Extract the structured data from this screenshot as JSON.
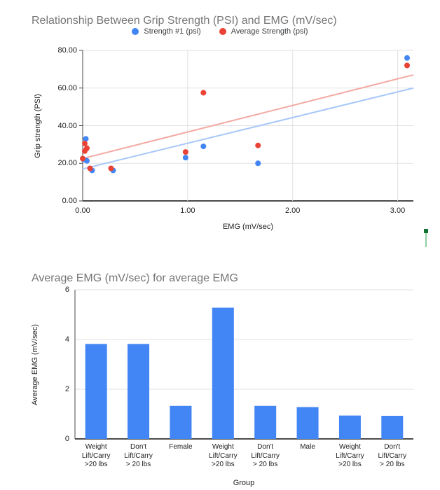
{
  "colors": {
    "title": "#757575",
    "text": "#202124",
    "grid": "#e2e2e2",
    "axis": "#4a4a4a",
    "selection_handle": "#34a853",
    "selection_handle_cap": "#137333"
  },
  "chart_data": [
    {
      "type": "scatter",
      "title": "Relationship Between Grip Strength (PSI) and EMG (mV/sec)",
      "xlabel": "EMG (mV/sec)",
      "ylabel": "Grip strength (PSI)",
      "xlim": [
        0,
        3.15
      ],
      "ylim": [
        0,
        80
      ],
      "grid": true,
      "legend_position": "top",
      "x_ticks": [
        {
          "v": 0,
          "label": "0.00"
        },
        {
          "v": 1,
          "label": "1.00"
        },
        {
          "v": 2,
          "label": "2.00"
        },
        {
          "v": 3,
          "label": "3.00"
        }
      ],
      "y_ticks": [
        {
          "v": 0,
          "label": "0.00"
        },
        {
          "v": 20,
          "label": "20.00"
        },
        {
          "v": 40,
          "label": "40.00"
        },
        {
          "v": 60,
          "label": "60.00"
        },
        {
          "v": 80,
          "label": "80.00"
        }
      ],
      "series": [
        {
          "name": "Strength #1 (psi)",
          "color": "#4285f4",
          "trend_color": "#a6c7f9",
          "points": [
            [
              0.03,
              33
            ],
            [
              0.01,
              22
            ],
            [
              0.04,
              21.3
            ],
            [
              0.09,
              16.2
            ],
            [
              0.29,
              16.2
            ],
            [
              0.98,
              23
            ],
            [
              1.15,
              29
            ],
            [
              1.67,
              20
            ],
            [
              3.09,
              76
            ]
          ],
          "trendline": {
            "x0": 0,
            "y0": 17,
            "x1": 3.15,
            "y1": 60
          }
        },
        {
          "name": "Average Strength (psi)",
          "color": "#ea4335",
          "trend_color": "#f4a9a2",
          "points": [
            [
              0.02,
              30.5
            ],
            [
              0.04,
              28
            ],
            [
              0.02,
              26.5
            ],
            [
              0,
              22.5
            ],
            [
              0.07,
              17.3
            ],
            [
              0.27,
              17.3
            ],
            [
              0.98,
              26
            ],
            [
              1.15,
              57.5
            ],
            [
              1.67,
              29.5
            ],
            [
              3.09,
              72
            ]
          ],
          "trendline": {
            "x0": 0,
            "y0": 22.5,
            "x1": 3.15,
            "y1": 67
          }
        }
      ]
    },
    {
      "type": "bar",
      "title": "Average EMG (mV/sec) for average EMG",
      "xlabel": "Group",
      "ylabel": "Average EMG (mV/sec)",
      "ylim": [
        0,
        6
      ],
      "grid": true,
      "bar_color": "#4285f4",
      "y_ticks": [
        {
          "v": 0,
          "label": "0"
        },
        {
          "v": 2,
          "label": "2"
        },
        {
          "v": 4,
          "label": "4"
        },
        {
          "v": 6,
          "label": "6"
        }
      ],
      "categories": [
        "Weight\nLift/Carry\n>20 lbs",
        "Don't\nLift/Carry\n> 20 lbs",
        "Female",
        "Weight\nLift/Carry\n>20 lbs",
        "Don't\nLift/Carry\n> 20 lbs",
        "Male",
        "Weight\nLift/Carry\n>20 lbs",
        "Don't\nLift/Carry\n> 20 lbs"
      ],
      "values": [
        3.82,
        3.82,
        1.33,
        5.28,
        1.33,
        1.28,
        0.94,
        0.93
      ]
    }
  ]
}
